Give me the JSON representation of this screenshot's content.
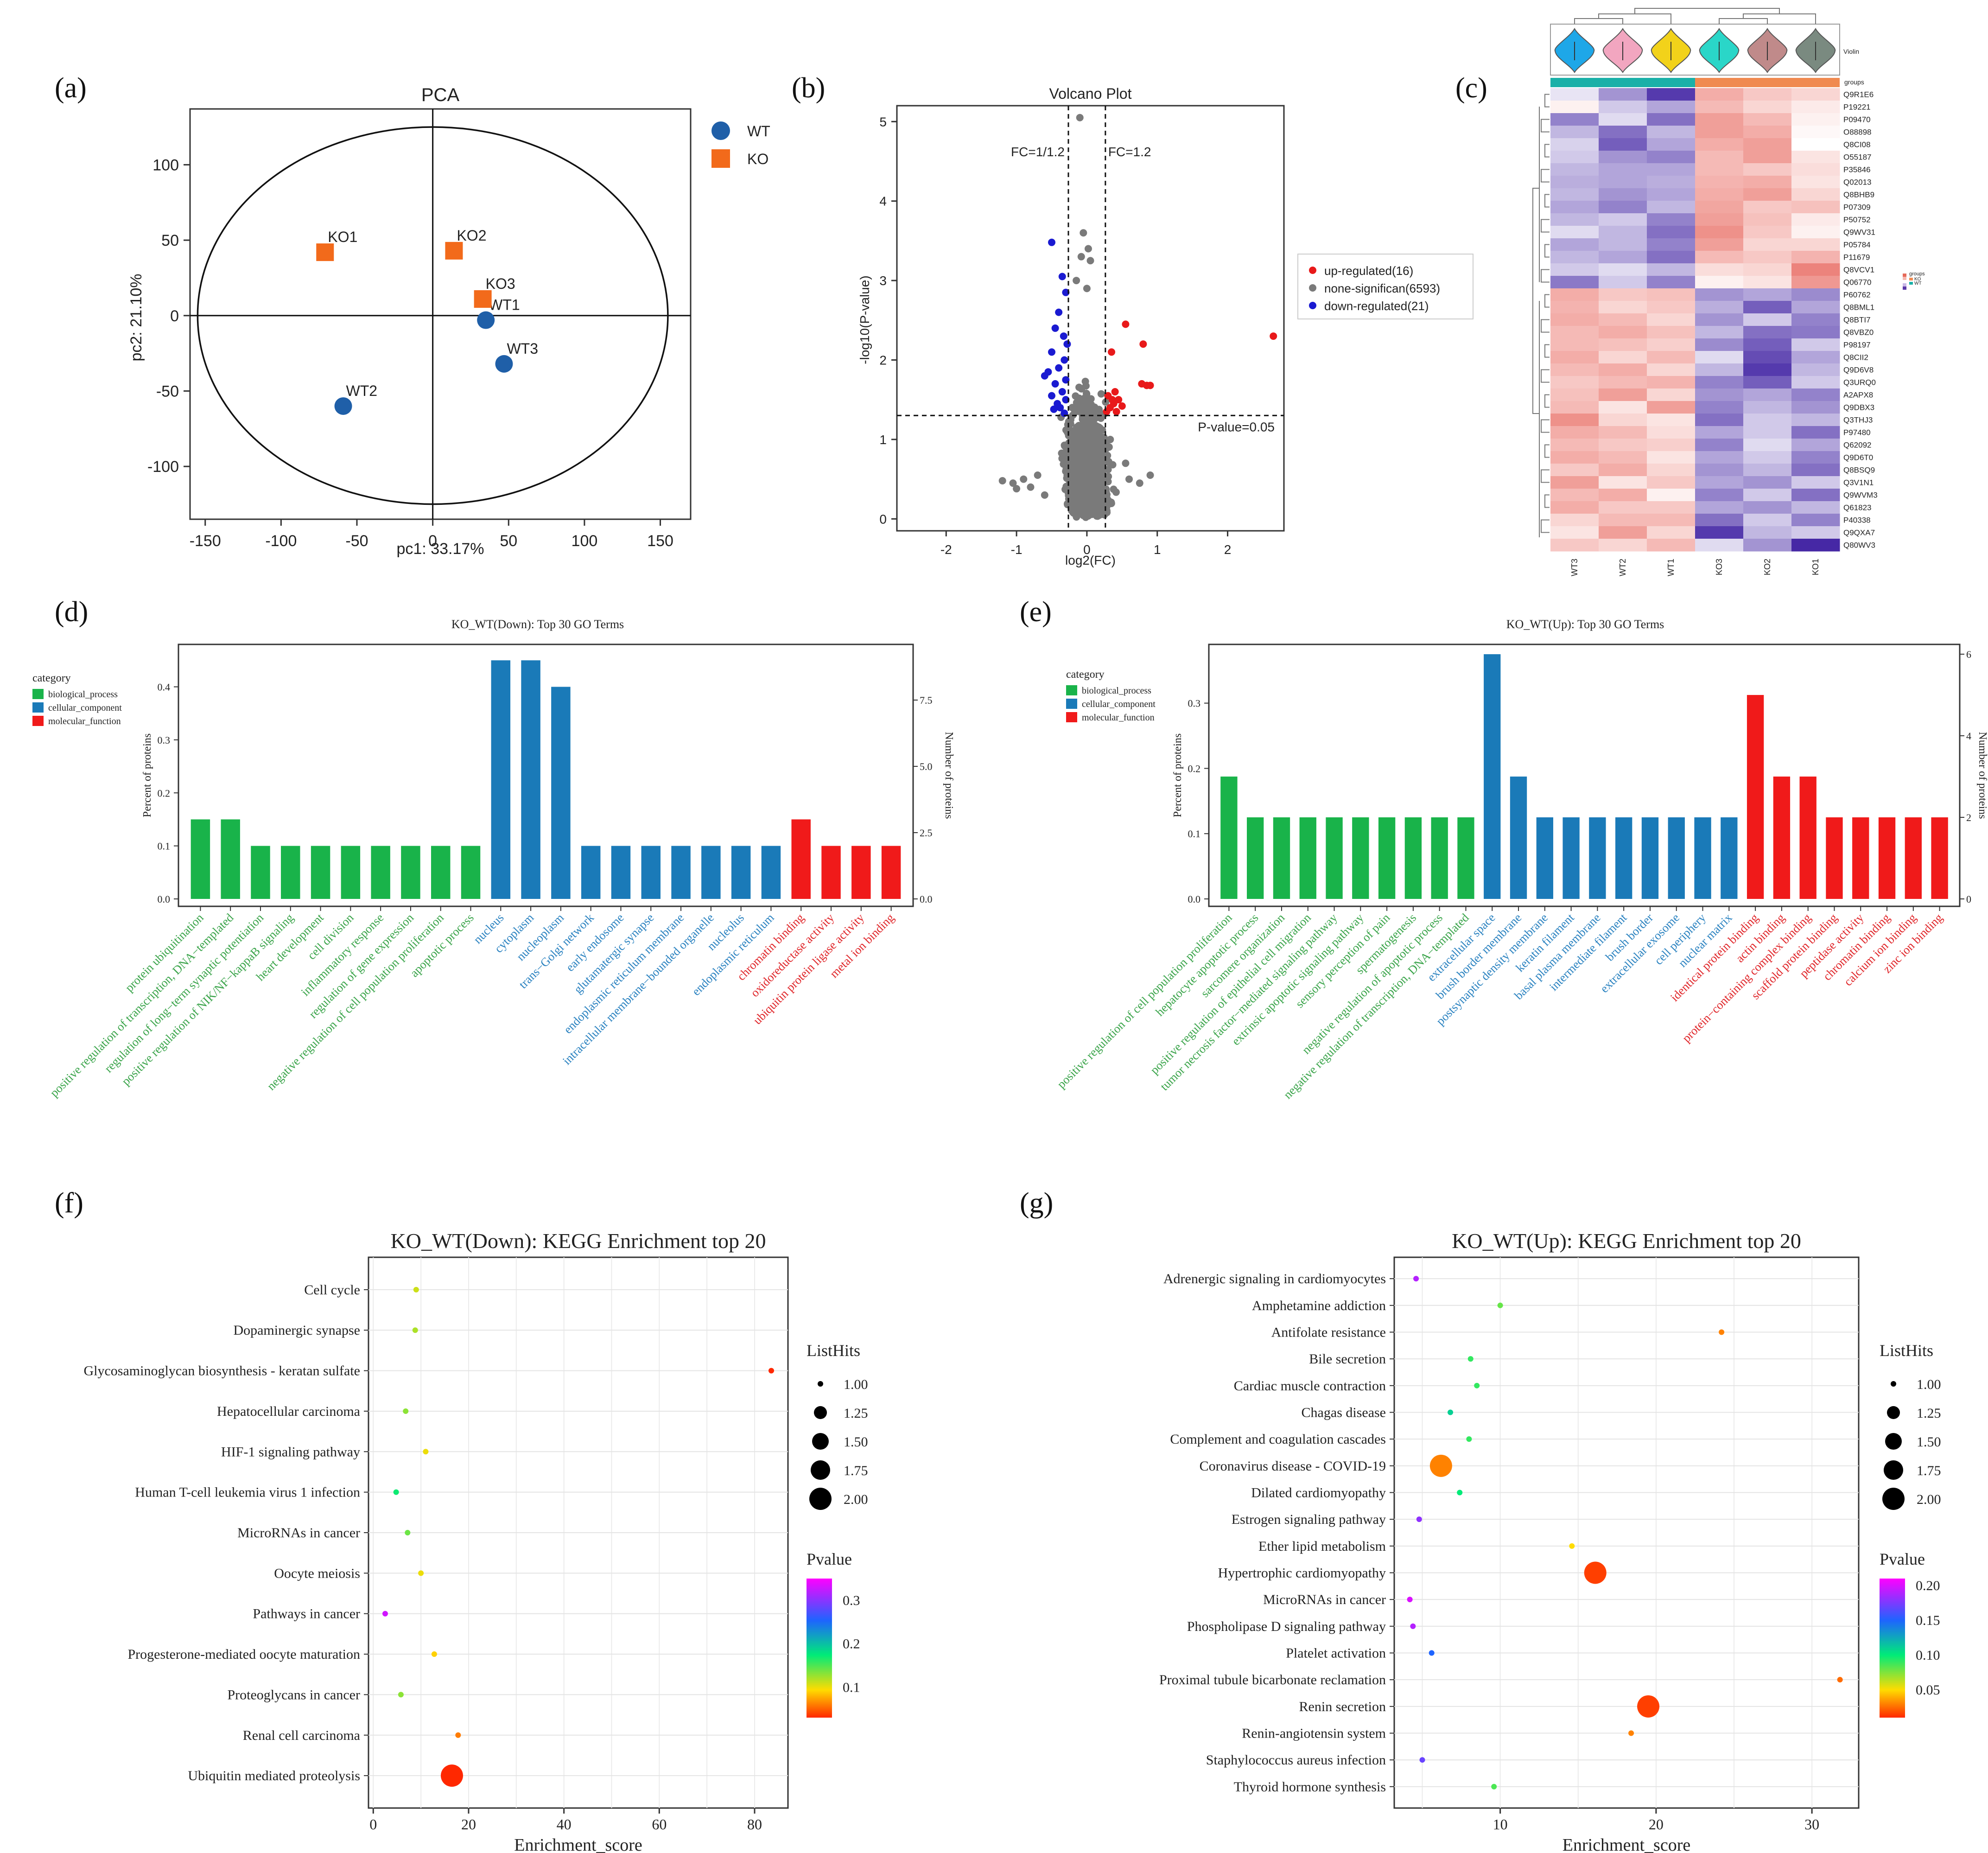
{
  "figure_labels": [
    "(a)",
    "(b)",
    "(c)",
    "(d)",
    "(e)",
    "(f)",
    "(g)"
  ],
  "colors": {
    "wt": "#1f5fa8",
    "ko": "#f26a1b",
    "up": "#e8191a",
    "none": "#7a7a7a",
    "down": "#1a1ad1",
    "bp": "#19b34a",
    "cc": "#1a7ab8",
    "mf": "#f01a1a",
    "bp_text": "#3aa44a",
    "cc_text": "#2a82c0",
    "mf_text": "#e0262a"
  },
  "chart_data": [
    {
      "id": "pca",
      "type": "scatter",
      "title": "PCA",
      "xlabel": "pc1: 33.17%",
      "ylabel": "pc2: 21.10%",
      "xlim": [
        -160,
        170
      ],
      "ylim": [
        -135,
        137
      ],
      "xticks": [
        -150,
        -100,
        -50,
        0,
        50,
        100,
        150
      ],
      "yticks": [
        -100,
        -50,
        0,
        50,
        100
      ],
      "ellipse": {
        "cx": 0,
        "cy": 0,
        "rx": 155,
        "ry": 125
      },
      "series": [
        {
          "name": "WT",
          "points": [
            {
              "label": "WT1",
              "x": 35,
              "y": -3
            },
            {
              "label": "WT2",
              "x": -59,
              "y": -60
            },
            {
              "label": "WT3",
              "x": 47,
              "y": -32
            }
          ]
        },
        {
          "name": "KO",
          "points": [
            {
              "label": "KO1",
              "x": -71,
              "y": 42
            },
            {
              "label": "KO2",
              "x": 14,
              "y": 43
            },
            {
              "label": "KO3",
              "x": 33,
              "y": 11
            }
          ]
        }
      ],
      "legend": [
        "WT",
        "KO"
      ]
    },
    {
      "id": "volcano",
      "type": "scatter",
      "title": "Volcano Plot",
      "xlabel": "log2(FC)",
      "ylabel": "-log10(P-value)",
      "xlim": [
        -2.7,
        2.8
      ],
      "ylim": [
        -0.15,
        5.2
      ],
      "xticks": [
        -2,
        -1,
        0,
        1,
        2
      ],
      "yticks": [
        0,
        1,
        2,
        3,
        4,
        5
      ],
      "thresholds": {
        "fc_low": -0.263,
        "fc_high": 0.263,
        "p": 1.301
      },
      "threshold_labels": {
        "fc_low": "FC=1/1.2",
        "fc_high": "FC=1.2",
        "p": "P-value=0.05"
      },
      "legend": [
        "up-regulated(16)",
        "none-significan(6593)",
        "down-regulated(21)"
      ],
      "up_points": [
        [
          0.55,
          2.45
        ],
        [
          0.8,
          2.2
        ],
        [
          0.35,
          2.1
        ],
        [
          0.78,
          1.7
        ],
        [
          0.85,
          1.68
        ],
        [
          0.9,
          1.68
        ],
        [
          0.4,
          1.6
        ],
        [
          0.3,
          1.55
        ],
        [
          0.45,
          1.5
        ],
        [
          0.38,
          1.45
        ],
        [
          0.5,
          1.42
        ],
        [
          0.33,
          1.4
        ],
        [
          0.42,
          1.35
        ],
        [
          0.28,
          1.35
        ],
        [
          0.36,
          1.5
        ],
        [
          2.65,
          2.3
        ]
      ],
      "down_points": [
        [
          -0.5,
          3.48
        ],
        [
          -0.35,
          3.05
        ],
        [
          -0.3,
          2.85
        ],
        [
          -0.4,
          2.6
        ],
        [
          -0.45,
          2.4
        ],
        [
          -0.33,
          2.3
        ],
        [
          -0.28,
          2.2
        ],
        [
          -0.5,
          2.1
        ],
        [
          -0.32,
          2.0
        ],
        [
          -0.55,
          1.85
        ],
        [
          -0.4,
          1.9
        ],
        [
          -0.3,
          1.75
        ],
        [
          -0.6,
          1.8
        ],
        [
          -0.45,
          1.7
        ],
        [
          -0.35,
          1.6
        ],
        [
          -0.5,
          1.55
        ],
        [
          -0.3,
          1.5
        ],
        [
          -0.42,
          1.45
        ],
        [
          -0.38,
          1.4
        ],
        [
          -0.47,
          1.38
        ],
        [
          -0.32,
          1.33
        ]
      ],
      "grey_peak_points": [
        [
          -0.1,
          5.05
        ],
        [
          -0.05,
          3.6
        ],
        [
          0.02,
          3.4
        ],
        [
          -0.08,
          3.3
        ],
        [
          0.05,
          3.25
        ],
        [
          -0.15,
          3.0
        ],
        [
          0.0,
          2.9
        ]
      ],
      "grey_spread_points": [
        [
          -1.2,
          0.48
        ],
        [
          -1.05,
          0.45
        ],
        [
          -0.9,
          0.5
        ],
        [
          -1.0,
          0.38
        ],
        [
          -0.8,
          0.4
        ],
        [
          -0.7,
          0.55
        ],
        [
          0.6,
          0.5
        ],
        [
          0.75,
          0.45
        ],
        [
          0.9,
          0.55
        ],
        [
          -0.6,
          0.3
        ],
        [
          0.55,
          0.7
        ]
      ]
    },
    {
      "id": "heatmap",
      "type": "heatmap",
      "columns": [
        "WT3",
        "WT2",
        "WT1",
        "KO3",
        "KO2",
        "KO1"
      ],
      "rows": [
        "Q9R1E6",
        "P19221",
        "P09470",
        "O88898",
        "Q8CI08",
        "O55187",
        "P35846",
        "Q02013",
        "Q8BHB9",
        "P07309",
        "P50752",
        "Q9WV31",
        "P05784",
        "P11679",
        "Q8VCV1",
        "Q06770",
        "P60762",
        "Q8BML1",
        "Q8BTI7",
        "Q8VBZ0",
        "P98197",
        "Q8CII2",
        "Q9D6V8",
        "Q3URQ0",
        "A2APX8",
        "Q9DBX3",
        "Q3THJ3",
        "P97480",
        "Q62092",
        "Q9D6T0",
        "Q8BSQ9",
        "Q3V1N1",
        "Q9WVM3",
        "Q61823",
        "P40338",
        "Q9QXA7",
        "Q80WV3"
      ],
      "values": [
        [
          -0.3,
          -1.2,
          -2.2,
          1.2,
          0.8,
          0.6
        ],
        [
          0.2,
          -0.6,
          -1.0,
          1.0,
          0.6,
          0.3
        ],
        [
          -1.4,
          -0.4,
          -1.6,
          1.4,
          1.0,
          0.2
        ],
        [
          -0.8,
          -1.6,
          -0.8,
          1.4,
          1.2,
          0.1
        ],
        [
          -0.5,
          -1.8,
          -1.0,
          1.2,
          1.4,
          0.0
        ],
        [
          -0.6,
          -1.2,
          -1.4,
          1.0,
          1.4,
          0.4
        ],
        [
          -0.8,
          -1.0,
          -1.0,
          1.0,
          0.8,
          0.5
        ],
        [
          -0.9,
          -1.0,
          -0.9,
          1.1,
          1.2,
          0.4
        ],
        [
          -0.8,
          -1.2,
          -1.0,
          1.2,
          1.4,
          0.6
        ],
        [
          -1.0,
          -1.4,
          -0.8,
          1.3,
          0.8,
          0.9
        ],
        [
          -0.8,
          -0.6,
          -1.4,
          1.4,
          0.9,
          0.3
        ],
        [
          -0.4,
          -0.8,
          -1.6,
          1.6,
          0.8,
          0.2
        ],
        [
          -1.0,
          -0.8,
          -1.4,
          1.4,
          0.6,
          0.6
        ],
        [
          -0.8,
          -1.0,
          -1.6,
          1.0,
          0.8,
          1.1
        ],
        [
          -0.6,
          -0.4,
          -0.8,
          0.5,
          0.6,
          1.8
        ],
        [
          -1.5,
          -0.6,
          -1.4,
          0.2,
          0.4,
          1.5
        ],
        [
          1.2,
          0.8,
          0.9,
          -1.2,
          -1.0,
          -1.3
        ],
        [
          1.1,
          0.6,
          0.8,
          -0.9,
          -1.8,
          -1.0
        ],
        [
          1.2,
          1.0,
          0.6,
          -1.2,
          -0.6,
          -1.4
        ],
        [
          1.0,
          1.2,
          0.9,
          -0.8,
          -1.6,
          -1.5
        ],
        [
          1.0,
          0.9,
          0.7,
          -1.3,
          -1.8,
          -0.6
        ],
        [
          1.2,
          0.6,
          1.0,
          -0.4,
          -2.0,
          -1.0
        ],
        [
          1.0,
          1.2,
          0.6,
          -0.8,
          -2.2,
          -0.8
        ],
        [
          0.8,
          1.0,
          1.1,
          -1.4,
          -1.8,
          -0.6
        ],
        [
          0.9,
          1.4,
          0.6,
          -1.2,
          -1.0,
          -1.4
        ],
        [
          1.0,
          0.4,
          1.4,
          -1.4,
          -0.8,
          -1.2
        ],
        [
          1.6,
          0.6,
          0.4,
          -1.6,
          -0.6,
          -0.8
        ],
        [
          1.2,
          1.0,
          0.5,
          -1.0,
          -0.6,
          -1.6
        ],
        [
          1.0,
          0.8,
          0.7,
          -1.4,
          -0.4,
          -1.0
        ],
        [
          1.2,
          1.0,
          0.4,
          -1.0,
          -0.6,
          -1.4
        ],
        [
          0.8,
          1.2,
          0.6,
          -1.2,
          -0.8,
          -1.6
        ],
        [
          1.4,
          0.4,
          0.8,
          -1.0,
          -1.2,
          -0.6
        ],
        [
          1.0,
          1.2,
          0.2,
          -1.4,
          -0.6,
          -1.6
        ],
        [
          1.2,
          0.8,
          0.8,
          -1.0,
          -1.2,
          -0.8
        ],
        [
          0.6,
          1.0,
          1.0,
          -1.6,
          -0.6,
          -1.4
        ],
        [
          0.4,
          1.4,
          0.6,
          -2.2,
          -0.8,
          -0.6
        ],
        [
          0.8,
          0.6,
          1.0,
          -0.4,
          -1.2,
          -2.4
        ]
      ],
      "groups_label": "groups",
      "violin_label": "Violin",
      "violin_colors": [
        "#1ea7e8",
        "#f2a6c0",
        "#f2d21a",
        "#2ad6c8",
        "#c08a8a",
        "#7a8a80"
      ],
      "group_legend": {
        "title": "groups",
        "items": [
          "KO",
          "WT"
        ]
      }
    },
    {
      "id": "go_down",
      "type": "bar",
      "title": "KO_WT(Down): Top 30 GO Terms",
      "ylabel": "Percent of proteins",
      "ylabel_right": "Number of proteins",
      "ylim": [
        0,
        0.48
      ],
      "yticks": [
        0.0,
        0.1,
        0.2,
        0.3,
        0.4
      ],
      "yticks_right": [
        "0.0",
        "2.5",
        "5.0",
        "7.5"
      ],
      "right_scale": 20,
      "legend_title": "category",
      "legend": [
        "biological_process",
        "cellular_component",
        "molecular_function"
      ],
      "categories": [
        "protein ubiquitination",
        "positive regulation of transcription, DNA−templated",
        "regulation of long−term synaptic potentiation",
        "positive regulation of NIK/NF−kappaB signaling",
        "heart development",
        "cell division",
        "inflammatory response",
        "regulation of gene expression",
        "negative regulation of cell population proliferation",
        "apoptotic process",
        "nucleus",
        "cytoplasm",
        "nucleoplasm",
        "trans−Golgi network",
        "early endosome",
        "glutamatergic synapse",
        "endoplasmic reticulum membrane",
        "intracellular membrane−bounded organelle",
        "nucleolus",
        "endoplasmic reticulum",
        "chromatin binding",
        "oxidoreductase activity",
        "ubiquitin protein ligase activity",
        "metal ion binding"
      ],
      "groups": [
        "bp",
        "bp",
        "bp",
        "bp",
        "bp",
        "bp",
        "bp",
        "bp",
        "bp",
        "bp",
        "cc",
        "cc",
        "cc",
        "cc",
        "cc",
        "cc",
        "cc",
        "cc",
        "cc",
        "cc",
        "mf",
        "mf",
        "mf",
        "mf"
      ],
      "values": [
        0.15,
        0.15,
        0.1,
        0.1,
        0.1,
        0.1,
        0.1,
        0.1,
        0.1,
        0.1,
        0.45,
        0.45,
        0.4,
        0.1,
        0.1,
        0.1,
        0.1,
        0.1,
        0.1,
        0.1,
        0.15,
        0.1,
        0.1,
        0.1
      ]
    },
    {
      "id": "go_up",
      "type": "bar",
      "title": "KO_WT(Up): Top 30 GO Terms",
      "ylabel": "Percent of proteins",
      "ylabel_right": "Number of proteins",
      "ylim": [
        0,
        0.39
      ],
      "yticks": [
        0.0,
        0.1,
        0.2,
        0.3
      ],
      "yticks_right": [
        "0",
        "2",
        "4",
        "6"
      ],
      "right_scale": 16,
      "legend_title": "category",
      "legend": [
        "biological_process",
        "cellular_component",
        "molecular_function"
      ],
      "categories": [
        "positive regulation of cell population proliferation",
        "hepatocyte apoptotic process",
        "sarcomere organization",
        "positive regulation of epithelial cell migration",
        "tumor necrosis factor−mediated signaling pathway",
        "extrinsic apoptotic signaling pathway",
        "sensory perception of pain",
        "spermatogenesis",
        "negative regulation of apoptotic process",
        "negative regulation of transcription, DNA−templated",
        "extracellular space",
        "brush border membrane",
        "postsynaptic density membrane",
        "keratin filament",
        "basal plasma membrane",
        "intermediate filament",
        "brush border",
        "extracellular exosome",
        "cell periphery",
        "nuclear matrix",
        "identical protein binding",
        "actin binding",
        "protein−containing complex binding",
        "scaffold protein binding",
        "peptidase activity",
        "chromatin binding",
        "calcium ion binding",
        "zinc ion binding"
      ],
      "groups": [
        "bp",
        "bp",
        "bp",
        "bp",
        "bp",
        "bp",
        "bp",
        "bp",
        "bp",
        "bp",
        "cc",
        "cc",
        "cc",
        "cc",
        "cc",
        "cc",
        "cc",
        "cc",
        "cc",
        "cc",
        "mf",
        "mf",
        "mf",
        "mf",
        "mf",
        "mf",
        "mf",
        "mf"
      ],
      "values": [
        0.1875,
        0.125,
        0.125,
        0.125,
        0.125,
        0.125,
        0.125,
        0.125,
        0.125,
        0.125,
        0.375,
        0.1875,
        0.125,
        0.125,
        0.125,
        0.125,
        0.125,
        0.125,
        0.125,
        0.125,
        0.3125,
        0.1875,
        0.1875,
        0.125,
        0.125,
        0.125,
        0.125,
        0.125
      ]
    },
    {
      "id": "kegg_down",
      "type": "scatter",
      "title": "KO_WT(Down): KEGG Enrichment top 20",
      "xlabel": "Enrichment_score",
      "xlim": [
        -1,
        87
      ],
      "xticks": [
        0,
        20,
        40,
        60,
        80
      ],
      "size_legend": {
        "title": "ListHits",
        "values": [
          "1.00",
          "1.25",
          "1.50",
          "1.75",
          "2.00"
        ]
      },
      "color_legend": {
        "title": "Pvalue",
        "ticks": [
          "0.3",
          "0.2",
          "0.1"
        ],
        "range": [
          0.03,
          0.35
        ]
      },
      "terms": [
        "Cell cycle",
        "Dopaminergic synapse",
        "Glycosaminoglycan biosynthesis - keratan sulfate",
        "Hepatocellular carcinoma",
        "HIF-1 signaling pathway",
        "Human T-cell leukemia virus 1 infection",
        "MicroRNAs in cancer",
        "Oocyte meiosis",
        "Pathways in cancer",
        "Progesterone-mediated oocyte maturation",
        "Proteoglycans in cancer",
        "Renal cell carcinoma",
        "Ubiquitin mediated proteolysis"
      ],
      "x": [
        9,
        8.8,
        83.5,
        6.8,
        11,
        4.8,
        7.2,
        10,
        2.5,
        12.8,
        5.8,
        17.8,
        16.5
      ],
      "hits": [
        1,
        1,
        1,
        1,
        1,
        1,
        1,
        1,
        1,
        1,
        1,
        1,
        2
      ],
      "pvalue": [
        0.11,
        0.12,
        0.02,
        0.13,
        0.1,
        0.17,
        0.14,
        0.1,
        0.33,
        0.09,
        0.13,
        0.06,
        0.03
      ]
    },
    {
      "id": "kegg_up",
      "type": "scatter",
      "title": "KO_WT(Up): KEGG Enrichment top 20",
      "xlabel": "Enrichment_score",
      "xlim": [
        3.2,
        33
      ],
      "xticks": [
        10,
        20,
        30
      ],
      "size_legend": {
        "title": "ListHits",
        "values": [
          "1.00",
          "1.25",
          "1.50",
          "1.75",
          "2.00"
        ]
      },
      "color_legend": {
        "title": "Pvalue",
        "ticks": [
          "0.20",
          "0.15",
          "0.10",
          "0.05"
        ],
        "range": [
          0.01,
          0.21
        ]
      },
      "terms": [
        "Adrenergic signaling in cardiomyocytes",
        "Amphetamine addiction",
        "Antifolate resistance",
        "Bile secretion",
        "Cardiac muscle contraction",
        "Chagas disease",
        "Complement and coagulation cascades",
        "Coronavirus disease - COVID-19",
        "Dilated cardiomyopathy",
        "Estrogen signaling pathway",
        "Ether lipid metabolism",
        "Hypertrophic cardiomyopathy",
        "MicroRNAs in cancer",
        "Phospholipase D signaling pathway",
        "Platelet activation",
        "Proximal tubule bicarbonate reclamation",
        "Renin secretion",
        "Renin-angiotensin system",
        "Staphylococcus aureus infection",
        "Thyroid hormone synthesis"
      ],
      "x": [
        4.6,
        10,
        24.2,
        8.1,
        8.5,
        6.8,
        8.0,
        6.2,
        7.4,
        4.8,
        14.6,
        16.1,
        4.2,
        4.4,
        5.6,
        31.8,
        19.5,
        18.4,
        5.0,
        9.6
      ],
      "hits": [
        1,
        1,
        1,
        1,
        1,
        1,
        1,
        2,
        1,
        1,
        1,
        2,
        1,
        1,
        1,
        1,
        2,
        1,
        1,
        1
      ],
      "pvalue": [
        0.19,
        0.08,
        0.03,
        0.09,
        0.09,
        0.11,
        0.09,
        0.03,
        0.1,
        0.18,
        0.05,
        0.015,
        0.2,
        0.19,
        0.15,
        0.025,
        0.015,
        0.03,
        0.17,
        0.085
      ]
    }
  ]
}
